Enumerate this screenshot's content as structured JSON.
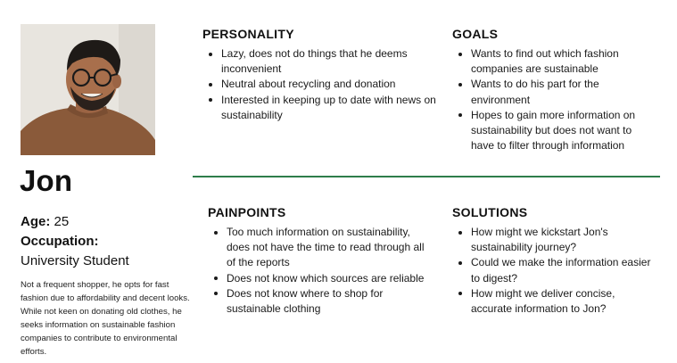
{
  "persona": {
    "name": "Jon",
    "age_label": "Age:",
    "age_value": "25",
    "occupation_label": "Occupation:",
    "occupation_value": "University Student",
    "bio": "Not a frequent shopper, he opts for fast fashion due to affordability and decent looks. While not keen on donating old clothes, he seeks information on sustainable fashion companies to contribute to environmental efforts."
  },
  "sections": {
    "personality": {
      "title": "PERSONALITY",
      "items": [
        "Lazy, does not do things that he deems inconvenient",
        "Neutral about recycling and donation",
        "Interested in keeping up to date with news on sustainability"
      ]
    },
    "goals": {
      "title": "GOALS",
      "items": [
        "Wants to find out which fashion companies are sustainable",
        "Wants to do his part for the environment",
        "Hopes to gain more information on sustainability but does not want to have to filter through information"
      ]
    },
    "painpoints": {
      "title": "PAINPOINTS",
      "items": [
        "Too much information on sustainability, does not have the time to read through all of the reports",
        "Does not know which sources are reliable",
        "Does not know where to shop for sustainable clothing"
      ]
    },
    "solutions": {
      "title": "SOLUTIONS",
      "items": [
        "How might we kickstart Jon's sustainability journey?",
        "Could we make the information easier to digest?",
        "How might we deliver concise, accurate information to Jon?"
      ]
    }
  },
  "colors": {
    "divider": "#2e7d4a",
    "sweater": "#8a5a3a",
    "skin": "#a86f4c",
    "background_photo": "#e9e6e1"
  }
}
